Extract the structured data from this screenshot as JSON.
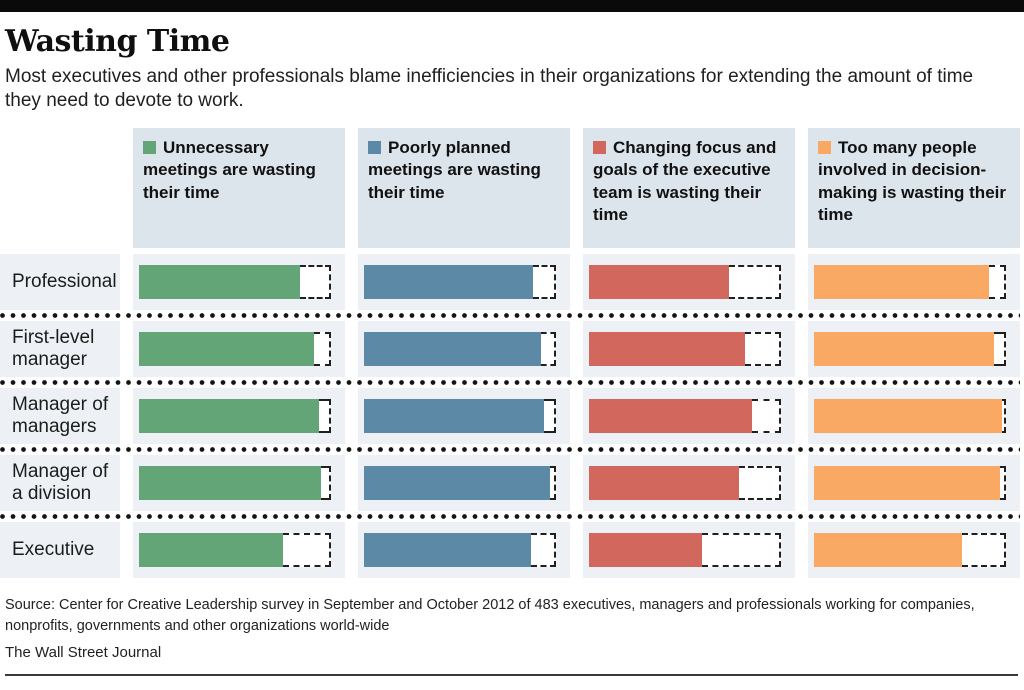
{
  "header": {
    "title": "Wasting Time",
    "subtitle": "Most executives and other professionals blame inefficiencies in their organizations for extending the amount of time they need to devote to work."
  },
  "chart_data": {
    "type": "bar",
    "orientation": "horizontal",
    "value_unit": "percent of respondents (estimated from bar length; dashed outline = 100%)",
    "xlim": [
      0,
      100
    ],
    "categories": [
      "Professional",
      "First-level manager",
      "Manager of managers",
      "Manager of a division",
      "Executive"
    ],
    "series": [
      {
        "name": "Unnecessary meetings are wasting their time",
        "color": "#63a577",
        "values": [
          84,
          91,
          94,
          95,
          75
        ]
      },
      {
        "name": "Poorly planned meetings are wasting their time",
        "color": "#5b89a6",
        "values": [
          88,
          92,
          94,
          97,
          87
        ]
      },
      {
        "name": "Changing focus and goals of the executive team is wasting their time",
        "color": "#d2685d",
        "values": [
          73,
          81,
          85,
          78,
          59
        ]
      },
      {
        "name": "Too many people involved in decision-making is wasting their time",
        "color": "#f9a963",
        "values": [
          91,
          94,
          98,
          97,
          77
        ]
      }
    ],
    "legend_position": "column headers",
    "grid": "off"
  },
  "colors": {
    "header_box_bg": "#dde5ec",
    "row_band_bg": "#edf1f5",
    "dashed_outline": "#1f1f1f",
    "top_bar": "#0a0a0a"
  },
  "footer": {
    "source": "Source: Center for Creative Leadership survey in September and October 2012 of 483 executives, managers and professionals working for companies, nonprofits, governments and other organizations world-wide",
    "credit": "The Wall Street Journal"
  }
}
